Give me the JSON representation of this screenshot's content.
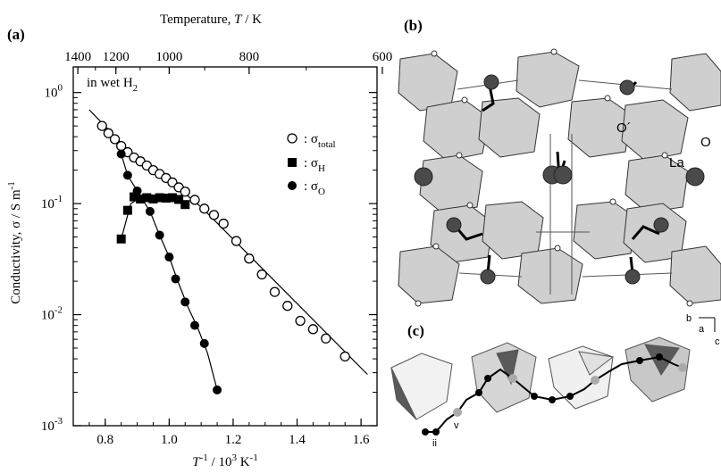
{
  "figure": {
    "panel_a_label": "(a)",
    "panel_b_label": "(b)",
    "panel_c_label": "(c)",
    "condition_note": "in wet H",
    "condition_note_sub": "2"
  },
  "structure_b": {
    "labels": [
      "O´",
      "O",
      "La"
    ]
  },
  "structure_c": {
    "labels": [
      "b",
      "a",
      "c",
      "ii",
      "v"
    ]
  },
  "chart_data": {
    "type": "scatter",
    "title": "",
    "xlabel": "T⁻¹ / 10³ K⁻¹",
    "xlabel_parts": {
      "main": "T",
      "sup1": "-1",
      "mid": " / 10",
      "sup2": "3",
      "tail": " K",
      "sup3": "-1"
    },
    "ylabel": "Conductivity, σ / S m⁻¹",
    "ylabel_parts": {
      "main": "Conductivity,  σ  / S m",
      "sup": "-1"
    },
    "top_axis_label": "Temperature, T / K",
    "top_axis_label_parts": {
      "pre": "Temperature, ",
      "T": "T",
      "post": " / K"
    },
    "xlim": [
      0.7,
      1.65
    ],
    "ylim": [
      0.001,
      1.7
    ],
    "yscale": "log",
    "x_ticks": [
      0.8,
      1.0,
      1.2,
      1.4,
      1.6
    ],
    "x_tick_labels": [
      "0.8",
      "1.0",
      "1.2",
      "1.4",
      "1.6"
    ],
    "y_ticks": [
      0.001,
      0.01,
      0.1,
      1
    ],
    "y_tick_labels": [
      {
        "base": "10",
        "exp": "-3"
      },
      {
        "base": "10",
        "exp": "-2"
      },
      {
        "base": "10",
        "exp": "-1"
      },
      {
        "base": "10",
        "exp": "0"
      }
    ],
    "top_ticks_K": [
      1400,
      1200,
      1000,
      800,
      600
    ],
    "top_tick_labels": [
      "1400",
      "1200",
      "1000",
      "800",
      "600"
    ],
    "legend_position": "right-middle",
    "series": [
      {
        "name": "σtotal",
        "legend": {
          "prefix": ": σ",
          "sub": "total"
        },
        "marker": "open-circle",
        "points": [
          [
            0.79,
            0.5
          ],
          [
            0.81,
            0.43
          ],
          [
            0.83,
            0.38
          ],
          [
            0.85,
            0.33
          ],
          [
            0.87,
            0.29
          ],
          [
            0.89,
            0.26
          ],
          [
            0.91,
            0.24
          ],
          [
            0.93,
            0.22
          ],
          [
            0.95,
            0.2
          ],
          [
            0.97,
            0.185
          ],
          [
            0.99,
            0.17
          ],
          [
            1.01,
            0.155
          ],
          [
            1.03,
            0.14
          ],
          [
            1.05,
            0.128
          ],
          [
            1.08,
            0.108
          ],
          [
            1.11,
            0.09
          ],
          [
            1.14,
            0.079
          ],
          [
            1.17,
            0.066
          ],
          [
            1.21,
            0.046
          ],
          [
            1.25,
            0.032
          ],
          [
            1.29,
            0.023
          ],
          [
            1.33,
            0.016
          ],
          [
            1.37,
            0.012
          ],
          [
            1.41,
            0.0088
          ],
          [
            1.45,
            0.0074
          ],
          [
            1.49,
            0.0061
          ],
          [
            1.55,
            0.0042
          ]
        ],
        "fit_line": [
          [
            0.75,
            0.7
          ],
          [
            0.9,
            0.25
          ],
          [
            1.02,
            0.145
          ],
          [
            1.1,
            0.093
          ],
          [
            1.62,
            0.0029
          ]
        ]
      },
      {
        "name": "σH",
        "legend": {
          "prefix": ": σ",
          "sub": "H"
        },
        "marker": "filled-square",
        "points": [
          [
            0.85,
            0.048
          ],
          [
            0.87,
            0.087
          ],
          [
            0.89,
            0.115
          ],
          [
            0.91,
            0.11
          ],
          [
            0.93,
            0.113
          ],
          [
            0.95,
            0.11
          ],
          [
            0.97,
            0.113
          ],
          [
            0.99,
            0.112
          ],
          [
            1.01,
            0.113
          ],
          [
            1.03,
            0.109
          ],
          [
            1.05,
            0.098
          ]
        ],
        "fit_line": [
          [
            0.85,
            0.048
          ],
          [
            0.88,
            0.1
          ],
          [
            0.91,
            0.113
          ],
          [
            0.99,
            0.113
          ],
          [
            1.03,
            0.108
          ],
          [
            1.06,
            0.095
          ]
        ]
      },
      {
        "name": "σO",
        "legend": {
          "prefix": ": σ",
          "sub": "O"
        },
        "marker": "filled-circle",
        "points": [
          [
            0.85,
            0.28
          ],
          [
            0.87,
            0.18
          ],
          [
            0.9,
            0.13
          ],
          [
            0.94,
            0.085
          ],
          [
            0.97,
            0.052
          ],
          [
            1.0,
            0.033
          ],
          [
            1.02,
            0.021
          ],
          [
            1.05,
            0.013
          ],
          [
            1.08,
            0.008
          ],
          [
            1.11,
            0.0055
          ],
          [
            1.15,
            0.0021
          ]
        ],
        "fit_line": [
          [
            0.85,
            0.28
          ],
          [
            0.87,
            0.18
          ],
          [
            0.9,
            0.13
          ],
          [
            0.94,
            0.085
          ],
          [
            0.97,
            0.052
          ],
          [
            1.0,
            0.033
          ],
          [
            1.03,
            0.019
          ],
          [
            1.06,
            0.0115
          ],
          [
            1.09,
            0.0075
          ],
          [
            1.12,
            0.0045
          ],
          [
            1.15,
            0.0021
          ]
        ]
      }
    ]
  }
}
